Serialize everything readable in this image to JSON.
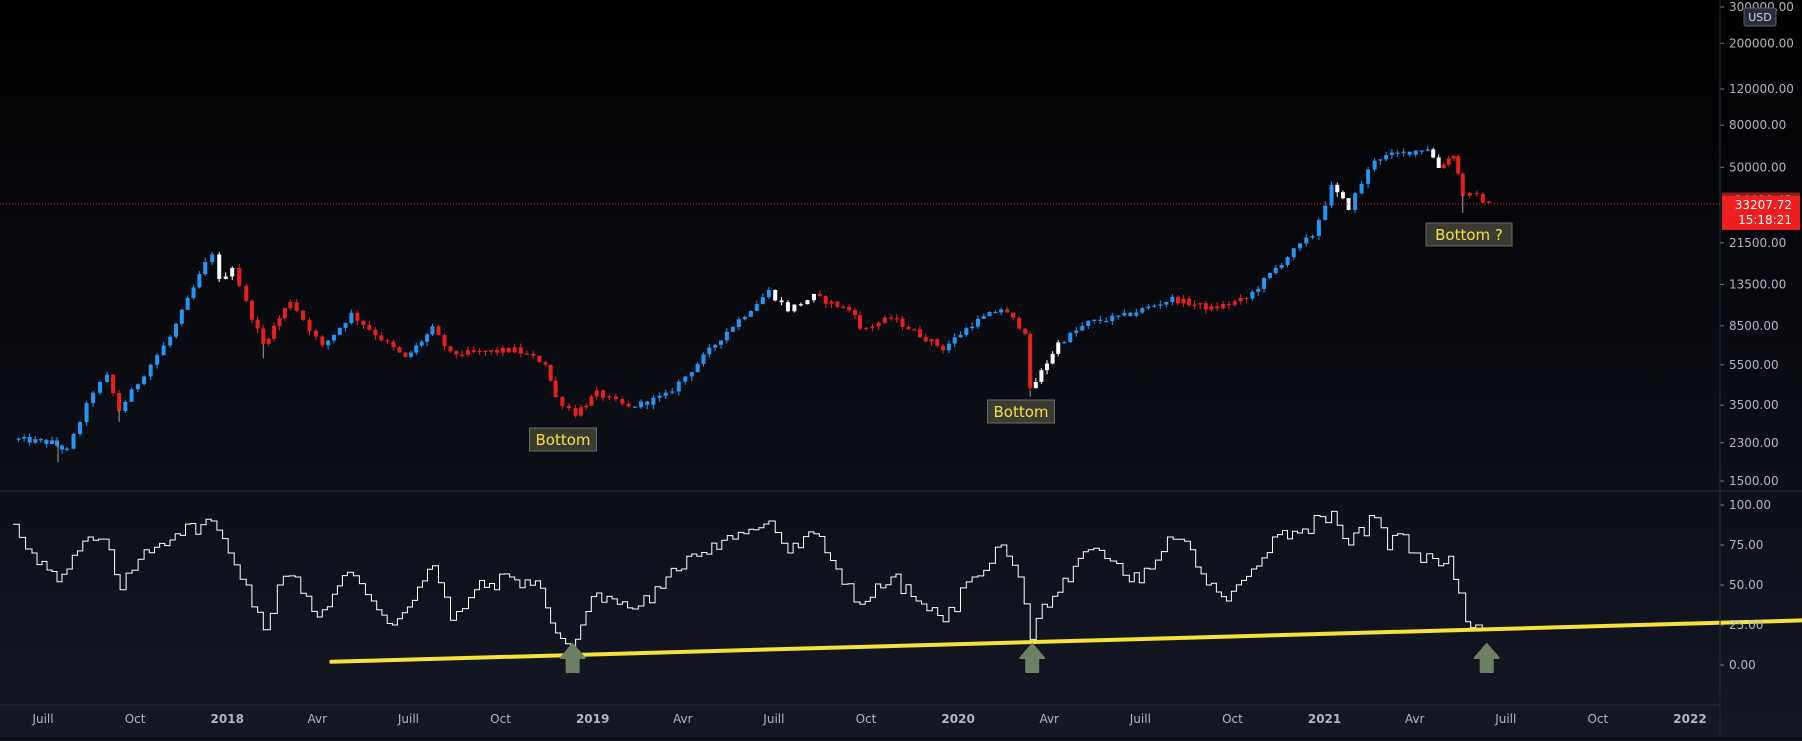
{
  "currency_label": "USD",
  "colors": {
    "background": "#0d0f16",
    "up": "#2196f3",
    "down": "#e8201c",
    "neutral": "#ffffff",
    "current_price_line": "#e8201c",
    "price_tag_bg": "#ef1f1f",
    "oscillator_line": "#ffffff",
    "trendline": "#f5e23b",
    "arrow": "#6f7f63",
    "annotation_bg": "#3a3b33",
    "annotation_text": "#f5e23b"
  },
  "price_tags": {
    "high_label": "34499.45",
    "last_price": "33207.72",
    "countdown": "15:18:21"
  },
  "annotations": [
    {
      "text": "Bottom"
    },
    {
      "text": "Bottom"
    },
    {
      "text": "Bottom ?"
    }
  ],
  "chart_data": [
    {
      "type": "candlestick",
      "title": "",
      "scale": "log",
      "ylim": [
        1300,
        310000
      ],
      "y_ticks": [
        "300000.00",
        "200000.00",
        "120000.00",
        "80000.00",
        "50000.00",
        "21500.00",
        "13500.00",
        "8500.00",
        "5500.00",
        "3500.00",
        "2300.00",
        "1500.00"
      ],
      "x_ticks": [
        "Juill",
        "Oct",
        "2018",
        "Avr",
        "Juill",
        "Oct",
        "2019",
        "Avr",
        "Juill",
        "Oct",
        "2020",
        "Avr",
        "Juill",
        "Oct",
        "2021",
        "Avr",
        "Juill",
        "Oct",
        "2022"
      ],
      "series": {
        "color_key": [
          "up",
          "down",
          "neutral"
        ],
        "anchors": [
          {
            "date": "2017-06-01",
            "price": 2400,
            "color": "up"
          },
          {
            "date": "2017-07-10",
            "price": 2300,
            "color": "up"
          },
          {
            "date": "2017-07-25",
            "price": 2100,
            "color": "up"
          },
          {
            "date": "2017-08-20",
            "price": 4100,
            "color": "up"
          },
          {
            "date": "2017-09-03",
            "price": 4800,
            "color": "up"
          },
          {
            "date": "2017-09-15",
            "price": 3300,
            "color": "down"
          },
          {
            "date": "2017-10-10",
            "price": 5000,
            "color": "up"
          },
          {
            "date": "2017-11-05",
            "price": 7500,
            "color": "up"
          },
          {
            "date": "2017-12-10",
            "price": 17000,
            "color": "up"
          },
          {
            "date": "2017-12-17",
            "price": 19300,
            "color": "up"
          },
          {
            "date": "2017-12-24",
            "price": 14000,
            "color": "neutral"
          },
          {
            "date": "2018-01-06",
            "price": 16500,
            "color": "neutral"
          },
          {
            "date": "2018-01-20",
            "price": 11000,
            "color": "down"
          },
          {
            "date": "2018-02-06",
            "price": 6900,
            "color": "down"
          },
          {
            "date": "2018-03-05",
            "price": 11300,
            "color": "down"
          },
          {
            "date": "2018-04-06",
            "price": 6700,
            "color": "down"
          },
          {
            "date": "2018-05-05",
            "price": 9700,
            "color": "up"
          },
          {
            "date": "2018-06-28",
            "price": 5900,
            "color": "down"
          },
          {
            "date": "2018-07-25",
            "price": 8200,
            "color": "up"
          },
          {
            "date": "2018-08-12",
            "price": 6200,
            "color": "down"
          },
          {
            "date": "2018-09-10",
            "price": 6300,
            "color": "down"
          },
          {
            "date": "2018-10-15",
            "price": 6500,
            "color": "down"
          },
          {
            "date": "2018-11-15",
            "price": 5600,
            "color": "down"
          },
          {
            "date": "2018-11-25",
            "price": 3800,
            "color": "down"
          },
          {
            "date": "2018-12-15",
            "price": 3200,
            "color": "down"
          },
          {
            "date": "2019-01-05",
            "price": 4000,
            "color": "down"
          },
          {
            "date": "2019-02-06",
            "price": 3400,
            "color": "down"
          },
          {
            "date": "2019-03-15",
            "price": 3900,
            "color": "up"
          },
          {
            "date": "2019-04-10",
            "price": 5200,
            "color": "up"
          },
          {
            "date": "2019-05-15",
            "price": 8000,
            "color": "up"
          },
          {
            "date": "2019-06-26",
            "price": 12500,
            "color": "up"
          },
          {
            "date": "2019-07-15",
            "price": 10200,
            "color": "neutral"
          },
          {
            "date": "2019-08-10",
            "price": 11800,
            "color": "neutral"
          },
          {
            "date": "2019-09-20",
            "price": 9900,
            "color": "down"
          },
          {
            "date": "2019-09-25",
            "price": 8100,
            "color": "down"
          },
          {
            "date": "2019-10-26",
            "price": 9300,
            "color": "down"
          },
          {
            "date": "2019-12-17",
            "price": 6600,
            "color": "down"
          },
          {
            "date": "2020-01-15",
            "price": 8700,
            "color": "up"
          },
          {
            "date": "2020-02-13",
            "price": 10300,
            "color": "up"
          },
          {
            "date": "2020-03-08",
            "price": 8000,
            "color": "down"
          },
          {
            "date": "2020-03-13",
            "price": 4100,
            "color": "down"
          },
          {
            "date": "2020-04-10",
            "price": 7000,
            "color": "neutral"
          },
          {
            "date": "2020-05-10",
            "price": 8800,
            "color": "up"
          },
          {
            "date": "2020-06-15",
            "price": 9500,
            "color": "up"
          },
          {
            "date": "2020-08-02",
            "price": 11500,
            "color": "up"
          },
          {
            "date": "2020-09-10",
            "price": 10300,
            "color": "down"
          },
          {
            "date": "2020-10-15",
            "price": 11500,
            "color": "down"
          },
          {
            "date": "2020-11-25",
            "price": 18500,
            "color": "up"
          },
          {
            "date": "2020-12-20",
            "price": 23500,
            "color": "up"
          },
          {
            "date": "2021-01-08",
            "price": 40000,
            "color": "up"
          },
          {
            "date": "2021-01-25",
            "price": 32000,
            "color": "neutral"
          },
          {
            "date": "2021-02-20",
            "price": 55000,
            "color": "up"
          },
          {
            "date": "2021-03-15",
            "price": 58000,
            "color": "up"
          },
          {
            "date": "2021-04-14",
            "price": 62000,
            "color": "up"
          },
          {
            "date": "2021-04-25",
            "price": 50000,
            "color": "neutral"
          },
          {
            "date": "2021-05-10",
            "price": 58000,
            "color": "down"
          },
          {
            "date": "2021-05-19",
            "price": 37000,
            "color": "down"
          },
          {
            "date": "2021-06-02",
            "price": 36000,
            "color": "down"
          },
          {
            "date": "2021-06-14",
            "price": 33207.72,
            "color": "down"
          }
        ],
        "spikes": [
          {
            "date": "2017-07-16",
            "low": 1850
          },
          {
            "date": "2017-09-15",
            "low": 2900
          },
          {
            "date": "2018-02-06",
            "low": 5900
          },
          {
            "date": "2020-03-13",
            "low": 3850
          },
          {
            "date": "2021-05-19",
            "low": 30000
          }
        ]
      }
    },
    {
      "type": "line",
      "title": "",
      "ylim": [
        -15,
        100
      ],
      "y_ticks": [
        "100.00",
        "75.00",
        "50.00",
        "25.00",
        "0.00"
      ],
      "series": [
        {
          "values": [
            {
              "date": "2017-06-01",
              "value": 88
            },
            {
              "date": "2017-06-20",
              "value": 70
            },
            {
              "date": "2017-07-15",
              "value": 52
            },
            {
              "date": "2017-07-25",
              "value": 60
            },
            {
              "date": "2017-08-15",
              "value": 80
            },
            {
              "date": "2017-09-05",
              "value": 72
            },
            {
              "date": "2017-09-16",
              "value": 47
            },
            {
              "date": "2017-10-10",
              "value": 72
            },
            {
              "date": "2017-11-10",
              "value": 82
            },
            {
              "date": "2017-12-16",
              "value": 90
            },
            {
              "date": "2018-01-02",
              "value": 70
            },
            {
              "date": "2018-01-20",
              "value": 50
            },
            {
              "date": "2018-02-06",
              "value": 22
            },
            {
              "date": "2018-02-20",
              "value": 50
            },
            {
              "date": "2018-03-10",
              "value": 55
            },
            {
              "date": "2018-04-01",
              "value": 30
            },
            {
              "date": "2018-05-01",
              "value": 58
            },
            {
              "date": "2018-05-25",
              "value": 40
            },
            {
              "date": "2018-06-15",
              "value": 25
            },
            {
              "date": "2018-07-25",
              "value": 62
            },
            {
              "date": "2018-08-12",
              "value": 28
            },
            {
              "date": "2018-09-05",
              "value": 47
            },
            {
              "date": "2018-10-10",
              "value": 55
            },
            {
              "date": "2018-11-10",
              "value": 48
            },
            {
              "date": "2018-11-25",
              "value": 20
            },
            {
              "date": "2018-12-10",
              "value": 10
            },
            {
              "date": "2018-12-20",
              "value": 25
            },
            {
              "date": "2019-01-05",
              "value": 45
            },
            {
              "date": "2019-02-10",
              "value": 35
            },
            {
              "date": "2019-03-10",
              "value": 48
            },
            {
              "date": "2019-04-05",
              "value": 68
            },
            {
              "date": "2019-05-10",
              "value": 78
            },
            {
              "date": "2019-06-01",
              "value": 82
            },
            {
              "date": "2019-06-26",
              "value": 90
            },
            {
              "date": "2019-07-15",
              "value": 70
            },
            {
              "date": "2019-08-10",
              "value": 82
            },
            {
              "date": "2019-09-01",
              "value": 60
            },
            {
              "date": "2019-09-25",
              "value": 38
            },
            {
              "date": "2019-10-26",
              "value": 55
            },
            {
              "date": "2019-11-20",
              "value": 40
            },
            {
              "date": "2019-12-17",
              "value": 27
            },
            {
              "date": "2020-01-15",
              "value": 55
            },
            {
              "date": "2020-02-13",
              "value": 75
            },
            {
              "date": "2020-03-01",
              "value": 55
            },
            {
              "date": "2020-03-13",
              "value": 16
            },
            {
              "date": "2020-03-25",
              "value": 38
            },
            {
              "date": "2020-04-20",
              "value": 52
            },
            {
              "date": "2020-05-10",
              "value": 72
            },
            {
              "date": "2020-06-01",
              "value": 65
            },
            {
              "date": "2020-06-20",
              "value": 52
            },
            {
              "date": "2020-07-10",
              "value": 60
            },
            {
              "date": "2020-07-28",
              "value": 80
            },
            {
              "date": "2020-08-20",
              "value": 72
            },
            {
              "date": "2020-09-05",
              "value": 50
            },
            {
              "date": "2020-09-25",
              "value": 40
            },
            {
              "date": "2020-10-20",
              "value": 60
            },
            {
              "date": "2020-11-10",
              "value": 80
            },
            {
              "date": "2020-12-10",
              "value": 85
            },
            {
              "date": "2021-01-08",
              "value": 96
            },
            {
              "date": "2021-01-25",
              "value": 75
            },
            {
              "date": "2021-02-20",
              "value": 92
            },
            {
              "date": "2021-03-05",
              "value": 72
            },
            {
              "date": "2021-03-15",
              "value": 82
            },
            {
              "date": "2021-04-01",
              "value": 70
            },
            {
              "date": "2021-04-25",
              "value": 62
            },
            {
              "date": "2021-05-05",
              "value": 68
            },
            {
              "date": "2021-05-15",
              "value": 45
            },
            {
              "date": "2021-05-22",
              "value": 27
            },
            {
              "date": "2021-06-01",
              "value": 25
            },
            {
              "date": "2021-06-14",
              "value": 23
            }
          ]
        }
      ],
      "trendline": {
        "from": {
          "date": "2018-04-15",
          "value": 2
        },
        "to": {
          "date": "2022-05-01",
          "value": 28
        }
      },
      "arrows": [
        "2018-12-10",
        "2020-03-13",
        "2021-06-10"
      ]
    }
  ]
}
